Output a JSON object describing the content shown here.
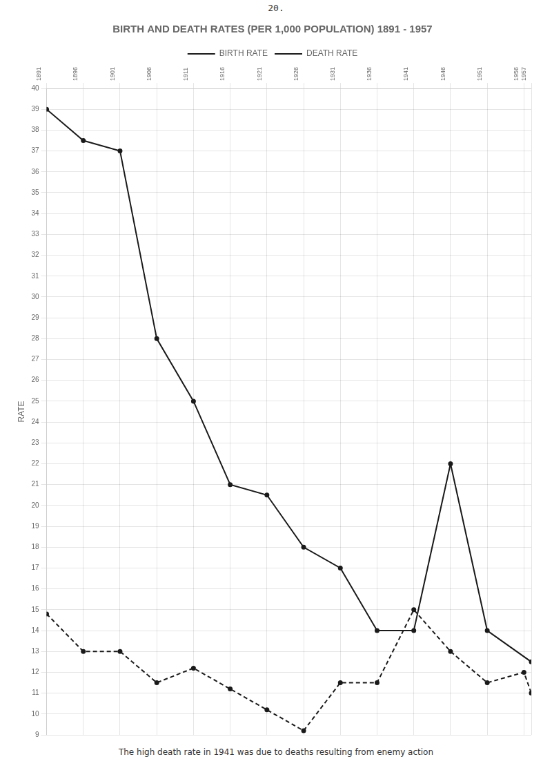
{
  "chart_data": {
    "type": "line",
    "title": "BIRTH AND DEATH RATES (PER 1,000 POPULATION) 1891 - 1957",
    "annotations": [
      "20.",
      "The high death rate in 1941 was due to deaths resulting from enemy action"
    ],
    "y_label": "RATE",
    "series": [
      {
        "name": "BIRTH RATE",
        "color": "#1a1a1a",
        "line_style": "solid",
        "marker": "circle",
        "x": [
          1891,
          1896,
          1901,
          1906,
          1911,
          1916,
          1921,
          1926,
          1931,
          1936,
          1941,
          1946,
          1951,
          1957
        ],
        "values": [
          39.0,
          37.5,
          37.0,
          28.0,
          25.0,
          21.0,
          20.5,
          18.0,
          17.0,
          14.0,
          14.0,
          22.0,
          14.0,
          12.5
        ]
      },
      {
        "name": "DEATH RATE",
        "color": "#1a1a1a",
        "line_style": "dashed",
        "marker": "circle",
        "x": [
          1891,
          1896,
          1901,
          1906,
          1911,
          1916,
          1921,
          1926,
          1931,
          1936,
          1941,
          1946,
          1951,
          1956,
          1957
        ],
        "values": [
          14.8,
          13.0,
          13.0,
          11.5,
          12.2,
          11.2,
          10.2,
          9.2,
          11.5,
          11.5,
          15.0,
          13.0,
          11.5,
          12.0,
          11.0
        ]
      }
    ],
    "xlim": [
      1891,
      1957
    ],
    "xticks": [
      1891,
      1896,
      1901,
      1906,
      1911,
      1916,
      1921,
      1926,
      1931,
      1936,
      1941,
      1946,
      1951,
      1956,
      1957
    ],
    "ylim": [
      9,
      40
    ],
    "yticks": [
      9,
      10,
      11,
      12,
      13,
      14,
      15,
      16,
      17,
      18,
      19,
      20,
      21,
      22,
      23,
      24,
      25,
      26,
      27,
      28,
      29,
      30,
      31,
      32,
      33,
      34,
      35,
      36,
      37,
      38,
      39,
      40
    ],
    "grid": true,
    "legend": "top"
  }
}
